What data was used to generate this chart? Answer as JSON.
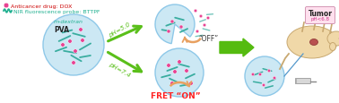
{
  "bg_color": "#ffffff",
  "legend_dot_color": "#e84393",
  "legend_line_color": "#20b090",
  "legend_dot_label": "Anticancer drug: DOX",
  "legend_line_label": "NIR fluorescence probe: BTTPF",
  "pva_label": "PVA",
  "mdextran_label": "m-dextran",
  "fret_on_label": "FRET “ON”",
  "fret_off_label": "“OFF”",
  "ph74_label": "pH=7.4",
  "ph50_label": "pH=5.0",
  "tumor_label": "Tumor",
  "tumor_ph_label": "pH<6.8",
  "nanoparticle_fill": "#cce8f4",
  "nanoparticle_edge": "#8ec8e8",
  "dot_color": "#e84393",
  "rod_color": "#3aada0",
  "arrow_green": "#5abf1a",
  "arrow_orange": "#e8a060",
  "fret_on_color": "#ff2222",
  "big_arrow_color": "#55bb10",
  "mouse_body": "#f0d8a8",
  "mouse_edge": "#c8a870",
  "tumor_box_fill": "#ffe0ee",
  "tumor_box_edge": "#cc88aa",
  "syringe_color": "#5599cc"
}
